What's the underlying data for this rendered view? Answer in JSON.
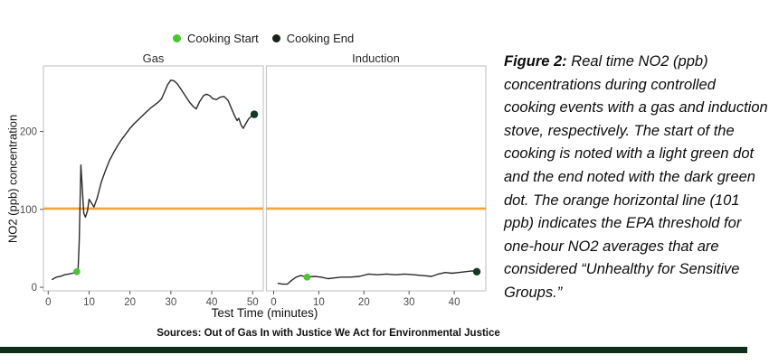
{
  "page": {
    "background": "#ffffff",
    "bottom_bar_color": "#0f2d1a"
  },
  "legend": {
    "items": [
      {
        "label": "Cooking Start",
        "color": "#49c432"
      },
      {
        "label": "Cooking End",
        "color": "#17241c"
      }
    ]
  },
  "threshold": {
    "value": 101,
    "color": "#f2a43c"
  },
  "markers": {
    "start_color": "#49c432",
    "end_color": "#133a22"
  },
  "chart_data": [
    {
      "type": "line",
      "title": "Gas",
      "xlabel": "Test Time (minutes)",
      "ylabel": "NO2 (ppb) concentration",
      "x": [
        1,
        2,
        3,
        4,
        5,
        6,
        7,
        7.3,
        7.6,
        8,
        8.3,
        8.7,
        9.1,
        9.6,
        10,
        10.6,
        11.2,
        12,
        13,
        14,
        15,
        16,
        17,
        18,
        19,
        20,
        21,
        22,
        23,
        24,
        25,
        26,
        27,
        27.7,
        28.4,
        29.2,
        30,
        30.8,
        31.6,
        32.5,
        33.5,
        34.5,
        35.5,
        36.2,
        37,
        38,
        38.7,
        39.5,
        40.3,
        41.2,
        42,
        43,
        44,
        44.8,
        45.6,
        46.2,
        46.6,
        47.2,
        47.7,
        48.3,
        49,
        49.8,
        50.4
      ],
      "y": [
        10,
        13,
        14,
        16,
        17,
        18,
        20,
        22,
        60,
        157,
        130,
        95,
        90,
        98,
        113,
        108,
        103,
        115,
        135,
        150,
        163,
        173,
        182,
        190,
        197,
        204,
        210,
        215,
        220,
        225,
        230,
        234,
        238,
        242,
        250,
        260,
        266,
        265,
        261,
        254,
        246,
        238,
        232,
        229,
        238,
        246,
        248,
        246,
        242,
        241,
        244,
        245,
        240,
        230,
        220,
        214,
        217,
        208,
        204,
        210,
        216,
        220,
        222
      ],
      "xticks": [
        0,
        10,
        20,
        30,
        40,
        50
      ],
      "yticks": [
        0,
        100,
        200
      ],
      "xlim": [
        -1.17,
        52.6
      ],
      "ylim": [
        -4.6,
        284.2
      ],
      "start_point": {
        "t": 7,
        "ppb": 20
      },
      "end_point": {
        "t": 50.4,
        "ppb": 222
      },
      "line_color": "#2a2a2a"
    },
    {
      "type": "line",
      "title": "Induction",
      "x": [
        1,
        2,
        3,
        4,
        5,
        6,
        7.4,
        9,
        10.5,
        12,
        13.5,
        15,
        17,
        19,
        21,
        23,
        25,
        27,
        29,
        31,
        33,
        35,
        36.5,
        38,
        39.5,
        41,
        42.5,
        44,
        45
      ],
      "y": [
        5,
        4,
        4,
        9,
        13,
        15,
        13,
        14,
        13,
        11,
        12,
        13,
        13,
        14,
        17,
        16,
        17,
        16,
        17,
        16,
        15,
        14,
        17,
        19,
        18,
        19,
        20,
        21,
        20
      ],
      "xticks": [
        0,
        10,
        20,
        30,
        40
      ],
      "yticks": [
        0,
        100,
        200
      ],
      "xlim": [
        -1.6,
        47.0
      ],
      "ylim": [
        -4.6,
        284.2
      ],
      "start_point": {
        "t": 7.4,
        "ppb": 13
      },
      "end_point": {
        "t": 45,
        "ppb": 20
      },
      "line_color": "#2a2a2a"
    }
  ],
  "caption": {
    "label": "Figure 2:",
    "text": " Real time NO2  (ppb) concentrations during controlled cooking events with a gas and induction stove, respectively. The start of the cooking is noted with a light green dot and the end noted with the dark green dot. The orange horizontal line (101 ppb) indicates the EPA threshold for one-hour NO2 averages that are considered “Unhealthy for Sensitive Groups.”"
  },
  "sources": "Sources: Out of Gas In with Justice We Act for Environmental Justice"
}
